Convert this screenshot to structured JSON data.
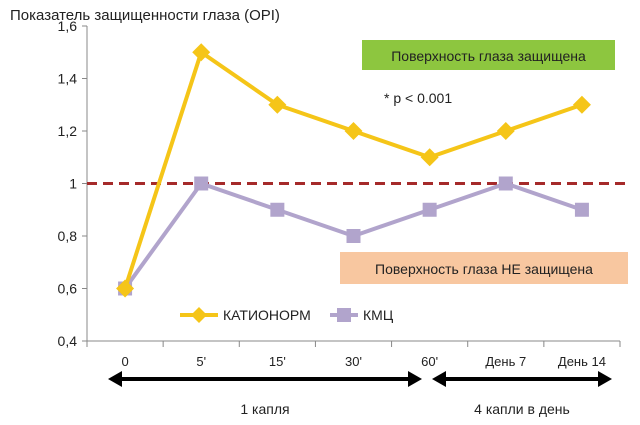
{
  "chart_data": {
    "type": "line",
    "ylabel": "Показатель защищенности глаза (OPI)",
    "categories": [
      "0",
      "5'",
      "15'",
      "30'",
      "60'",
      "День 7",
      "День 14"
    ],
    "ylim": [
      0.4,
      1.6
    ],
    "yticks": [
      0.4,
      0.6,
      0.8,
      1.0,
      1.2,
      1.4,
      1.6
    ],
    "ytick_labels": [
      "0,4",
      "0,6",
      "0,8",
      "1",
      "1,2",
      "1,4",
      "1,6"
    ],
    "grid": false,
    "legend_position": "bottom-left inside",
    "series": [
      {
        "name": "КАТИОНОРМ",
        "values": [
          0.6,
          1.5,
          1.3,
          1.2,
          1.1,
          1.2,
          1.3
        ],
        "color": "#f5c518",
        "marker": "diamond"
      },
      {
        "name": "КМЦ",
        "values": [
          0.6,
          1.0,
          0.9,
          0.8,
          0.9,
          1.0,
          0.9
        ],
        "color": "#b1a4cc",
        "marker": "square"
      }
    ],
    "threshold": {
      "value": 1.0,
      "color": "#a52a2a",
      "style": "dashed"
    },
    "annotations": {
      "protected": {
        "text": "Поверхность глаза защищена",
        "bg": "#8dc63f"
      },
      "significance": {
        "text": "* p < 0.001"
      },
      "not_protected": {
        "text": "Поверхность глаза НЕ защищена",
        "bg": "#f8c7a0"
      }
    },
    "periods": [
      {
        "label": "1 капля",
        "from": 0,
        "to": 4
      },
      {
        "label": "4 капли в день",
        "from": 4,
        "to": 6
      }
    ]
  }
}
